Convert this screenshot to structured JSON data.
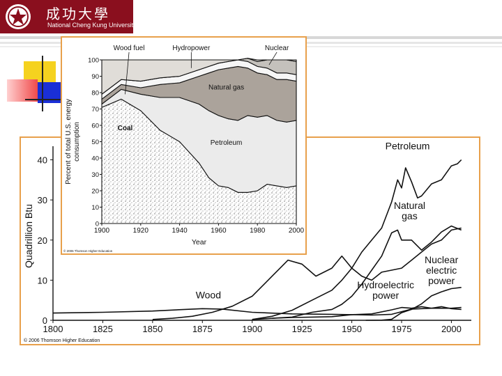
{
  "logo": {
    "name_cn": "成功大學",
    "name_en": "National Cheng Kung University"
  },
  "colors": {
    "university_red": "#8a0f1e",
    "frame_orange": "#e8a04b",
    "accent_yellow": "#f5d21f",
    "accent_blue": "#1a2fd6",
    "accent_red": "#f04a4a"
  },
  "chart_data": [
    {
      "type": "line",
      "xlabel": "",
      "ylabel": "Quadrillion Btu",
      "xlim": [
        1800,
        2010
      ],
      "ylim": [
        0,
        42
      ],
      "x_ticks": [
        "1800",
        "1825",
        "1850",
        "1875",
        "1900",
        "1925",
        "1950",
        "1975",
        "2000"
      ],
      "y_ticks": [
        "0",
        "10",
        "20",
        "30",
        "40"
      ],
      "copyright": "© 2006 Thomson Higher Education",
      "series": [
        {
          "name": "Wood",
          "label_lines": [
            "Wood"
          ],
          "x": [
            1800,
            1825,
            1850,
            1870,
            1875,
            1885,
            1900,
            1920,
            1940,
            1950,
            1960,
            1970,
            1980,
            1990,
            2000,
            2005
          ],
          "values": [
            1.8,
            2.0,
            2.3,
            2.8,
            2.9,
            2.8,
            2.0,
            1.6,
            1.5,
            1.4,
            1.3,
            1.5,
            2.8,
            3.0,
            3.0,
            3.2
          ]
        },
        {
          "name": "Coal",
          "label_lines": [],
          "x": [
            1850,
            1860,
            1870,
            1880,
            1890,
            1900,
            1910,
            1918,
            1925,
            1932,
            1940,
            1945,
            1950,
            1955,
            1960,
            1965,
            1970,
            1975,
            1980,
            1985,
            1990,
            1995,
            2000,
            2005
          ],
          "values": [
            0.2,
            0.5,
            1.0,
            2.0,
            3.5,
            6.0,
            11.0,
            15.0,
            14.0,
            11.0,
            13.0,
            16.0,
            13.0,
            11.0,
            10.0,
            12.0,
            12.5,
            13.0,
            15.0,
            17.0,
            19.0,
            20.0,
            22.5,
            23.0
          ]
        },
        {
          "name": "Petroleum",
          "label_lines": [
            "Petroleum"
          ],
          "x": [
            1900,
            1910,
            1920,
            1930,
            1940,
            1945,
            1950,
            1955,
            1960,
            1965,
            1970,
            1973,
            1975,
            1977,
            1980,
            1983,
            1985,
            1990,
            1995,
            2000,
            2003,
            2005
          ],
          "values": [
            0.2,
            1.0,
            2.5,
            5.0,
            7.5,
            10.0,
            13.0,
            17.0,
            20.0,
            23.0,
            29.5,
            35.0,
            33.0,
            38.0,
            34.5,
            30.5,
            31.0,
            34.0,
            35.0,
            38.5,
            39.0,
            40.0
          ]
        },
        {
          "name": "Natural gas",
          "label_lines": [
            "Natural",
            "gas"
          ],
          "x": [
            1900,
            1910,
            1920,
            1930,
            1940,
            1945,
            1950,
            1955,
            1960,
            1965,
            1970,
            1973,
            1975,
            1980,
            1985,
            1990,
            1995,
            2000,
            2005
          ],
          "values": [
            0.2,
            0.5,
            0.8,
            2.0,
            2.7,
            4.0,
            6.0,
            9.0,
            12.5,
            16.0,
            21.8,
            22.5,
            20.0,
            20.0,
            17.5,
            19.5,
            22.0,
            23.5,
            22.5
          ]
        },
        {
          "name": "Hydroelectric power",
          "label_lines": [
            "Hydroelectric",
            "power"
          ],
          "x": [
            1910,
            1920,
            1930,
            1940,
            1950,
            1960,
            1970,
            1975,
            1980,
            1985,
            1990,
            1995,
            2000,
            2005
          ],
          "values": [
            0.5,
            0.7,
            0.8,
            0.9,
            1.4,
            1.6,
            2.6,
            3.2,
            3.0,
            3.4,
            3.0,
            3.4,
            2.9,
            2.7
          ]
        },
        {
          "name": "Nuclear electric power",
          "label_lines": [
            "Nuclear",
            "electric",
            "power"
          ],
          "x": [
            1957,
            1965,
            1970,
            1975,
            1980,
            1985,
            1990,
            1995,
            2000,
            2005
          ],
          "values": [
            0.0,
            0.04,
            0.24,
            1.9,
            2.7,
            4.1,
            6.1,
            7.1,
            7.9,
            8.2
          ]
        }
      ]
    },
    {
      "type": "area",
      "xlabel": "Year",
      "ylabel": "Percent of total U.S. energy consumption",
      "ylabel_lines": [
        "Percent of total U.S. energy",
        "consumption"
      ],
      "xlim": [
        1900,
        2000
      ],
      "ylim": [
        0,
        100
      ],
      "x_ticks": [
        "1900",
        "1920",
        "1940",
        "1960",
        "1980",
        "2000"
      ],
      "y_ticks": [
        "0",
        "10",
        "20",
        "30",
        "40",
        "50",
        "60",
        "70",
        "80",
        "90",
        "100"
      ],
      "copyright": "© 2006 Thomson Higher Education",
      "x": [
        1900,
        1910,
        1920,
        1930,
        1940,
        1950,
        1955,
        1960,
        1965,
        1970,
        1975,
        1980,
        1985,
        1990,
        1995,
        2000
      ],
      "series": [
        {
          "name": "Coal",
          "values": [
            71,
            76,
            69,
            57,
            50,
            37,
            28,
            23,
            22,
            19,
            19,
            20,
            24,
            23,
            22,
            23
          ]
        },
        {
          "name": "Petroleum",
          "values": [
            2,
            6,
            10,
            20,
            27,
            36,
            41,
            43,
            42,
            44,
            47,
            45,
            42,
            40,
            40,
            40
          ]
        },
        {
          "name": "Natural gas",
          "values": [
            3,
            3,
            4,
            8,
            9,
            17,
            23,
            28,
            31,
            33,
            29,
            27,
            25,
            25,
            26,
            24
          ]
        },
        {
          "name": "Hydropower",
          "values": [
            3,
            3,
            4,
            4,
            4,
            4,
            4,
            4,
            4,
            4,
            4,
            4,
            4,
            4,
            4,
            4
          ]
        },
        {
          "name": "Nuclear",
          "values": [
            0,
            0,
            0,
            0,
            0,
            0,
            0,
            0,
            0,
            0,
            2,
            3,
            5,
            8,
            8,
            8
          ]
        },
        {
          "name": "Wood fuel",
          "values": [
            21,
            12,
            13,
            11,
            10,
            6,
            4,
            2,
            1,
            0,
            0,
            1,
            0,
            0,
            0,
            1
          ]
        }
      ]
    }
  ]
}
